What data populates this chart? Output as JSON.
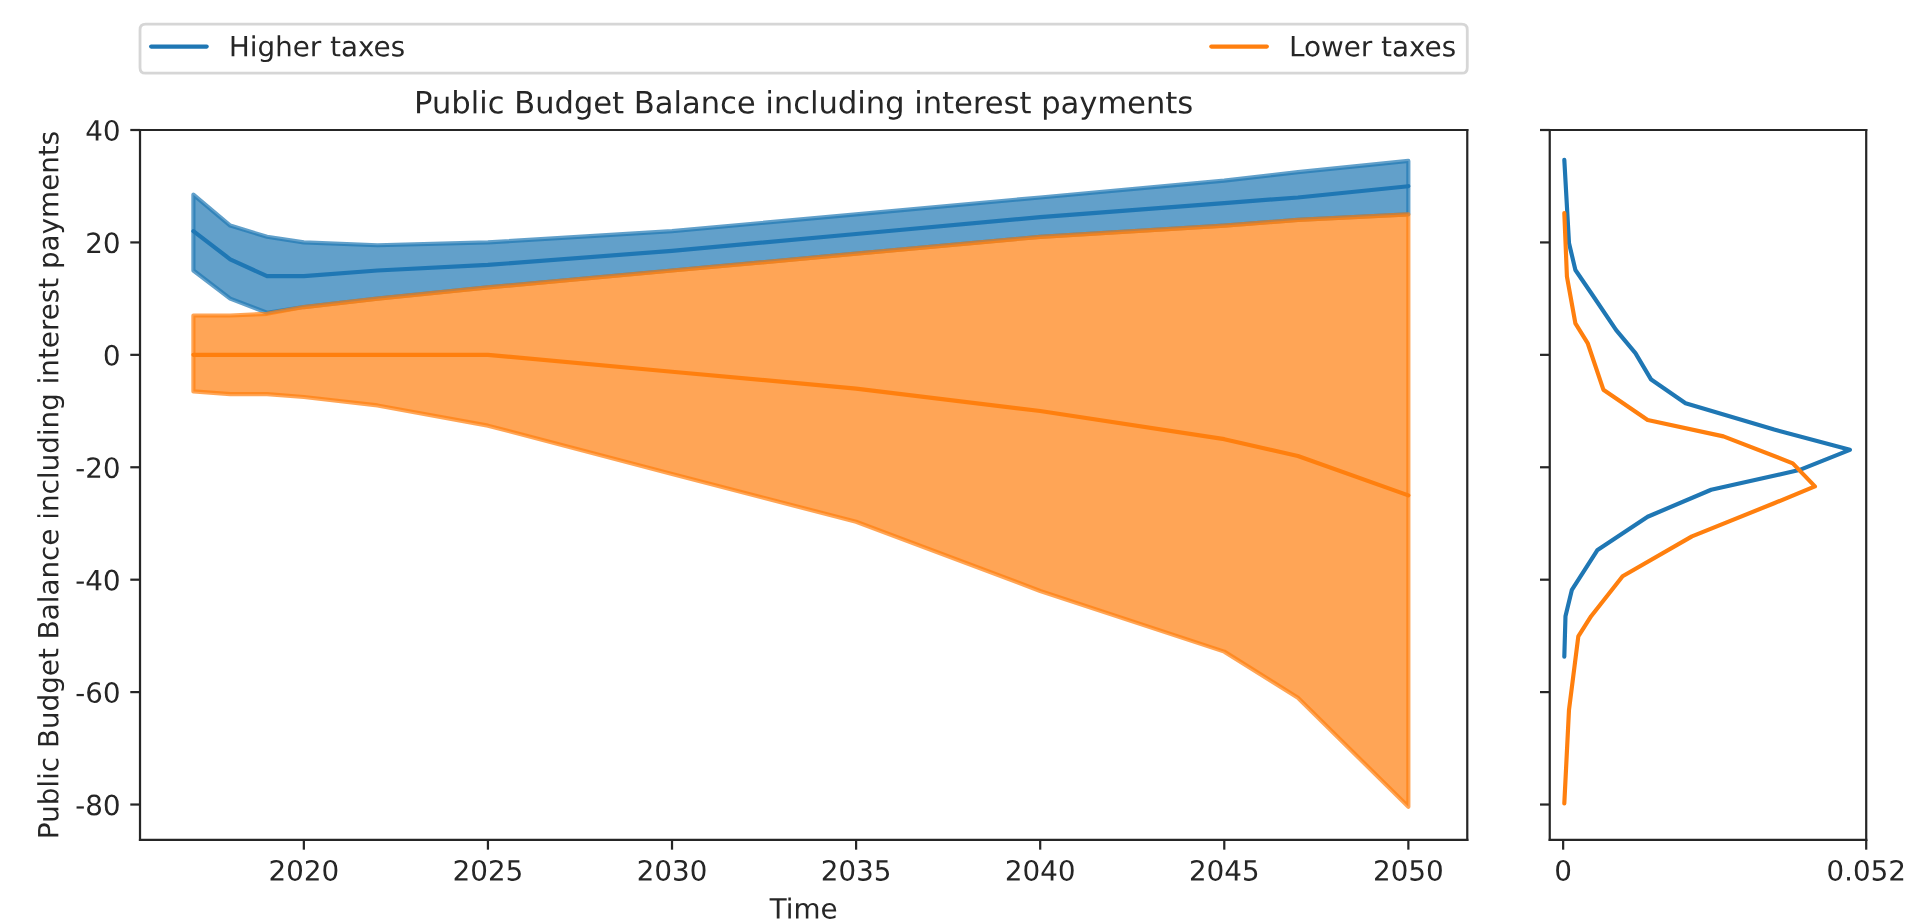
{
  "chart_data": [
    {
      "type": "line",
      "title": "Public Budget Balance including interest payments",
      "xlabel": "Time",
      "ylabel": "Public Budget Balance including interest payments",
      "x": [
        2017,
        2018,
        2019,
        2020,
        2022,
        2025,
        2030,
        2035,
        2040,
        2045,
        2047,
        2050
      ],
      "series": [
        {
          "name": "Higher taxes",
          "color": "#1f77b4",
          "values": [
            22,
            17,
            14,
            14,
            15,
            16,
            18.5,
            21.5,
            24.5,
            27,
            28,
            30
          ],
          "upper": [
            28.5,
            23,
            21,
            20,
            19.5,
            20,
            22,
            25,
            28,
            31,
            32.5,
            34.5
          ],
          "lower": [
            15,
            10,
            7.5,
            8.5,
            10,
            12,
            15,
            18,
            21,
            23,
            24,
            25
          ]
        },
        {
          "name": "Lower taxes",
          "color": "#ff7f0e",
          "values": [
            0,
            0,
            0,
            0,
            0,
            0,
            -3,
            -6,
            -10,
            -15,
            -18,
            -25
          ],
          "upper": [
            7,
            7,
            7.3,
            8.5,
            10,
            12,
            15,
            18,
            21,
            23,
            24,
            25
          ],
          "lower": [
            -6.5,
            -7,
            -7,
            -7.5,
            -9,
            -12.6,
            -21.2,
            -29.7,
            -42,
            -52.8,
            -61,
            -80.4
          ]
        }
      ],
      "xlim": [
        2015.55,
        2051.6
      ],
      "xticks": [
        2020,
        2025,
        2030,
        2035,
        2040,
        2045,
        2050
      ],
      "ylim": [
        -86.3,
        40
      ],
      "yticks": [
        -80,
        -60,
        -40,
        -20,
        0,
        20,
        40
      ],
      "legend": "top",
      "grid": false
    },
    {
      "type": "line",
      "series": [
        {
          "color": "#1f77b4",
          "x": [
            0.0002,
            0.001,
            0.0021,
            0.0048,
            0.0091,
            0.0124,
            0.0151,
            0.021,
            0.0362,
            0.0492,
            0.0405,
            0.0254,
            0.0145,
            0.0059,
            0.0015,
            0.0004,
            0.0002
          ],
          "values": [
            34.7,
            19.9,
            15.1,
            11.0,
            4.4,
            0.3,
            -4.4,
            -8.6,
            -13.3,
            -16.9,
            -20.5,
            -24.0,
            -28.8,
            -34.7,
            -41.8,
            -46.5,
            -53.7
          ]
        },
        {
          "color": "#ff7f0e",
          "x": [
            0.0002,
            0.00065,
            0.0021,
            0.0042,
            0.0069,
            0.0145,
            0.0275,
            0.0394,
            0.0432,
            0.0362,
            0.0221,
            0.0102,
            0.0048,
            0.0026,
            0.001,
            0.0002
          ],
          "values": [
            25.2,
            13.9,
            5.6,
            2.1,
            -6.2,
            -11.6,
            -14.5,
            -19.3,
            -23.4,
            -26.4,
            -32.3,
            -39.4,
            -46.5,
            -50.1,
            -63.2,
            -79.8
          ]
        }
      ],
      "xlim": [
        -0.0023,
        0.052
      ],
      "xticks": [
        0,
        0.052
      ],
      "ylim": [
        -86.3,
        40
      ],
      "yticks": [
        -80,
        -60,
        -40,
        -20,
        0,
        20,
        40
      ],
      "tick_labels": "x",
      "grid": false
    }
  ]
}
